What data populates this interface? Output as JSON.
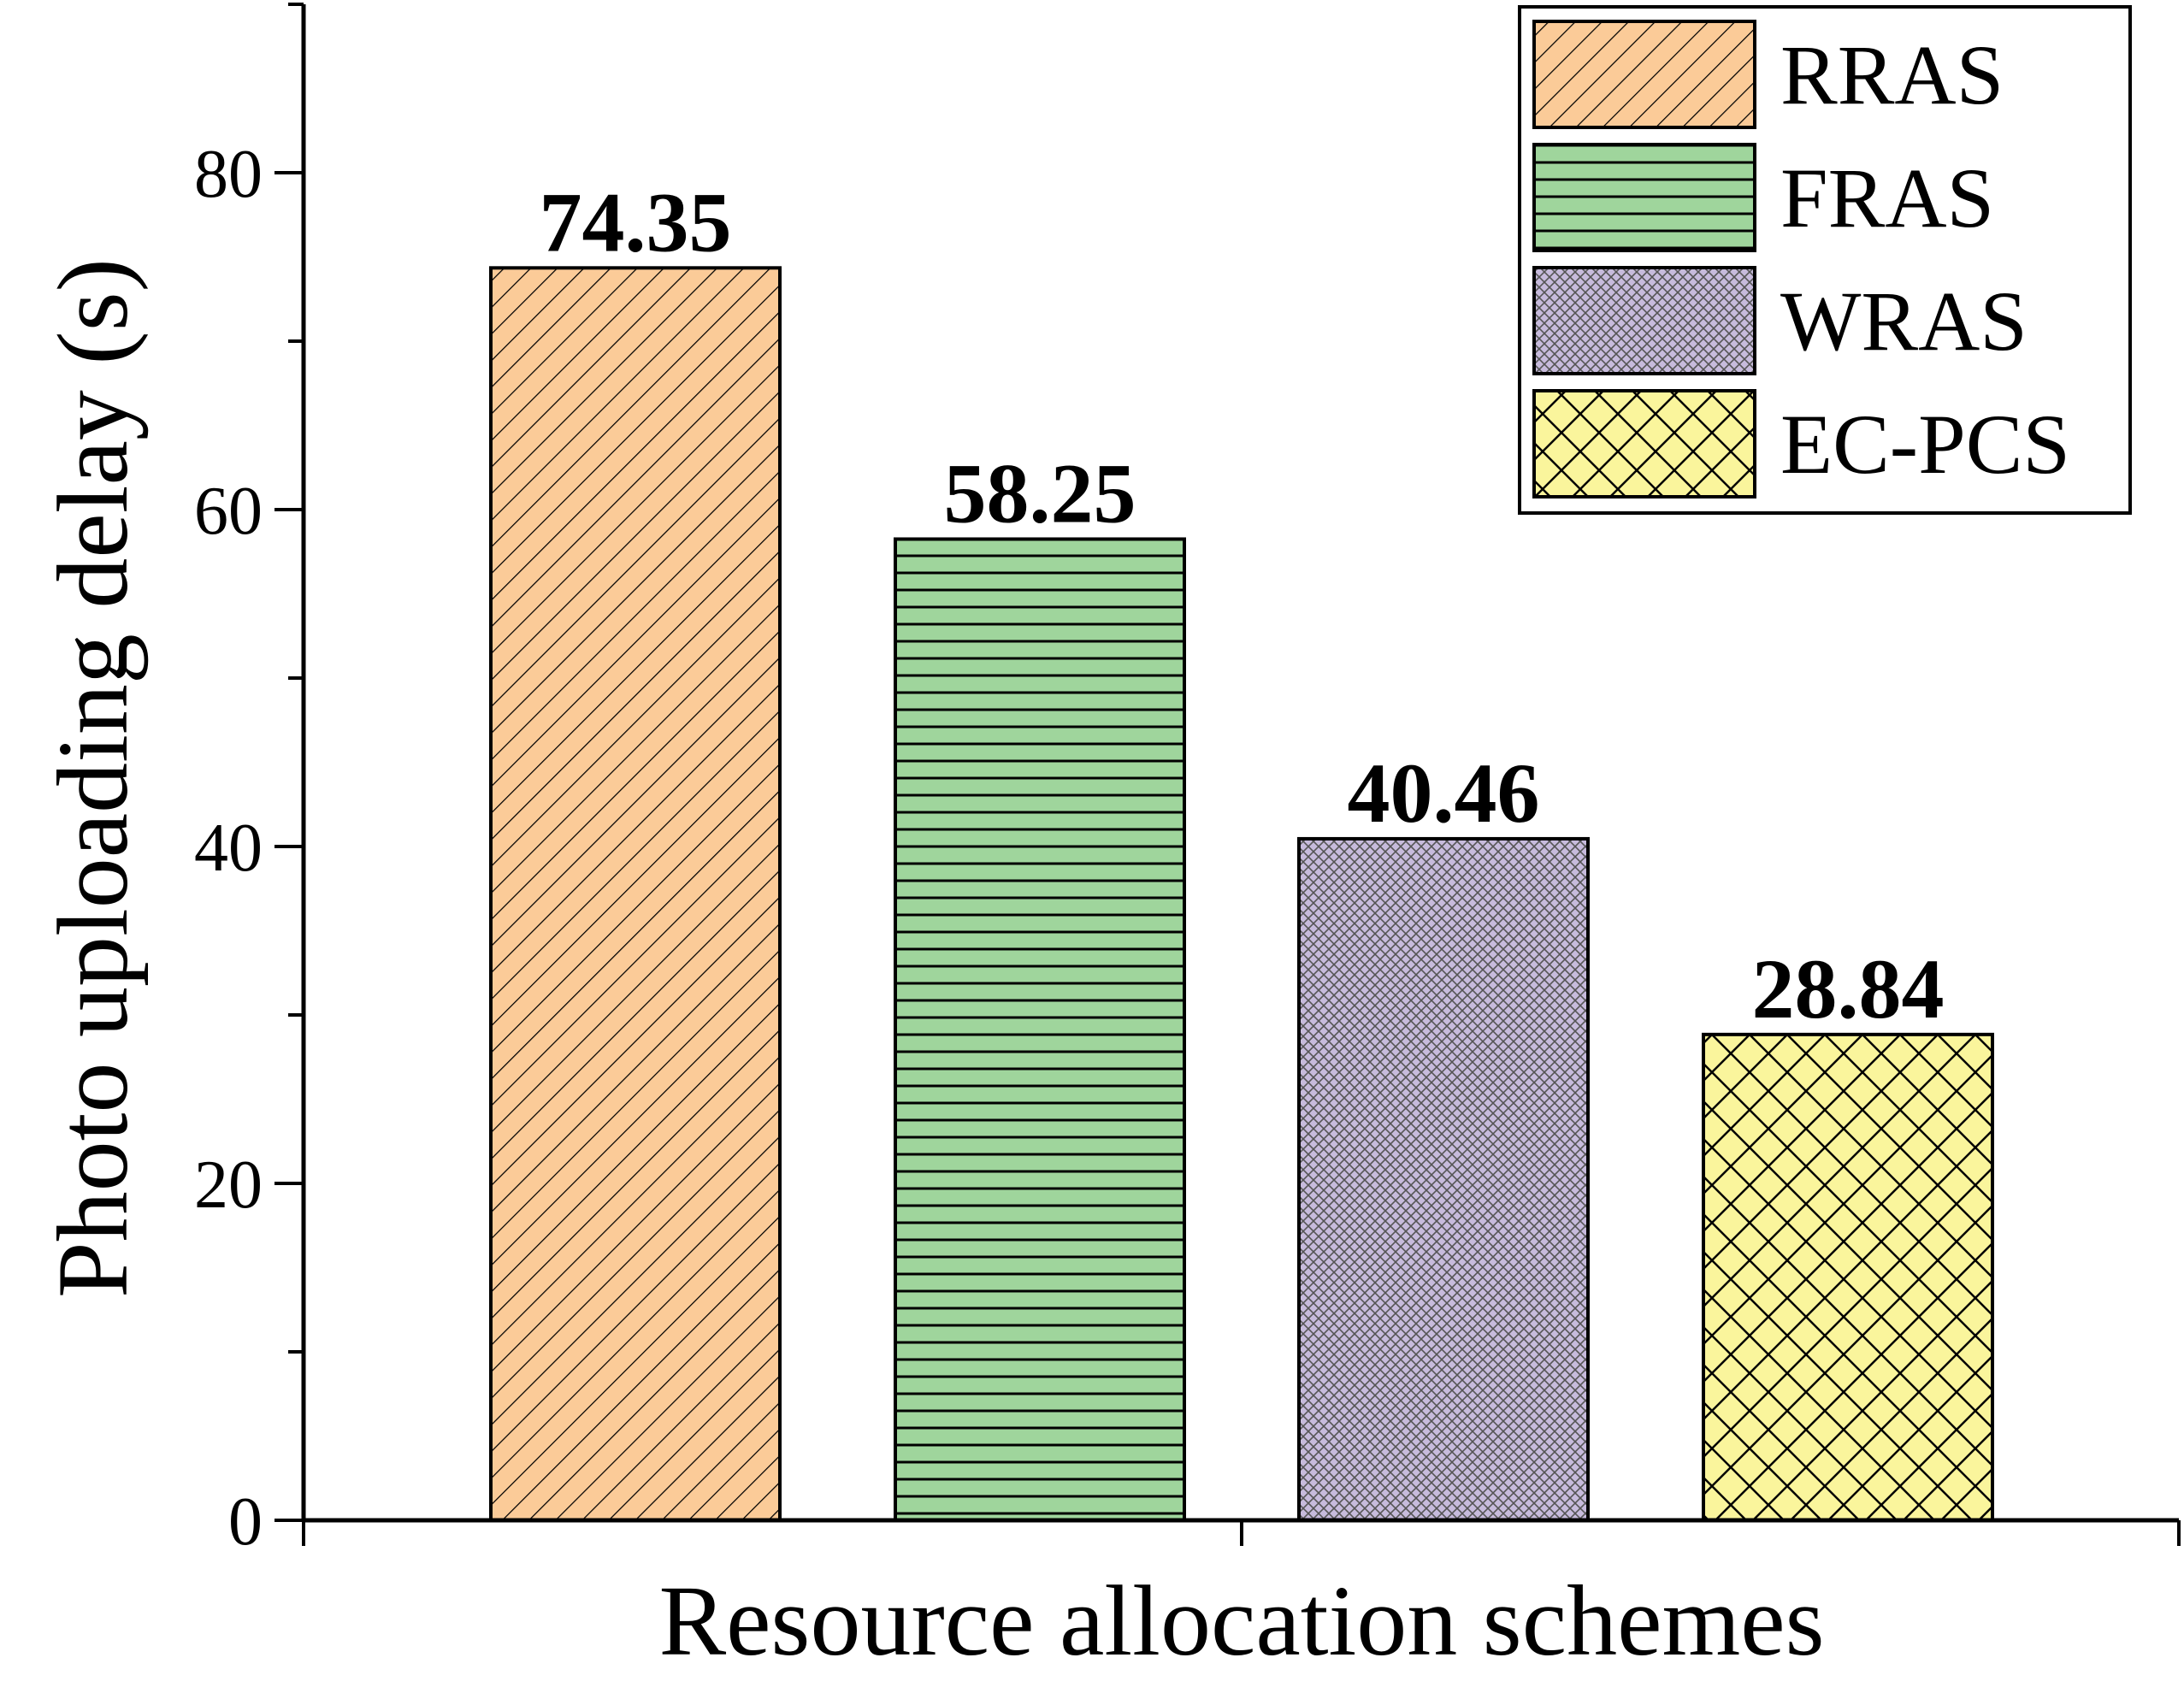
{
  "chart_data": {
    "type": "bar",
    "title": "",
    "xlabel": "Resource allocation schemes",
    "ylabel": "Photo uploading delay (s)",
    "ylim": [
      0,
      90
    ],
    "yticks": [
      0,
      20,
      40,
      60,
      80
    ],
    "y_minor_ticks": [
      10,
      30,
      50,
      70,
      90
    ],
    "grid": false,
    "legend_position": "top-right",
    "categories": [
      "RRAS",
      "FRAS",
      "WRAS",
      "EC-PCS"
    ],
    "values": [
      74.35,
      58.25,
      40.46,
      28.84
    ],
    "data_labels": [
      "74.35",
      "58.25",
      "40.46",
      "28.84"
    ],
    "bar_colors": [
      "#FBCB98",
      "#9FD59C",
      "#C7BBDC",
      "#FAF59C"
    ],
    "bar_patterns": [
      "diagonal-hatch",
      "horizontal-lines",
      "fine-crosshatch",
      "diamond-crosshatch"
    ]
  }
}
